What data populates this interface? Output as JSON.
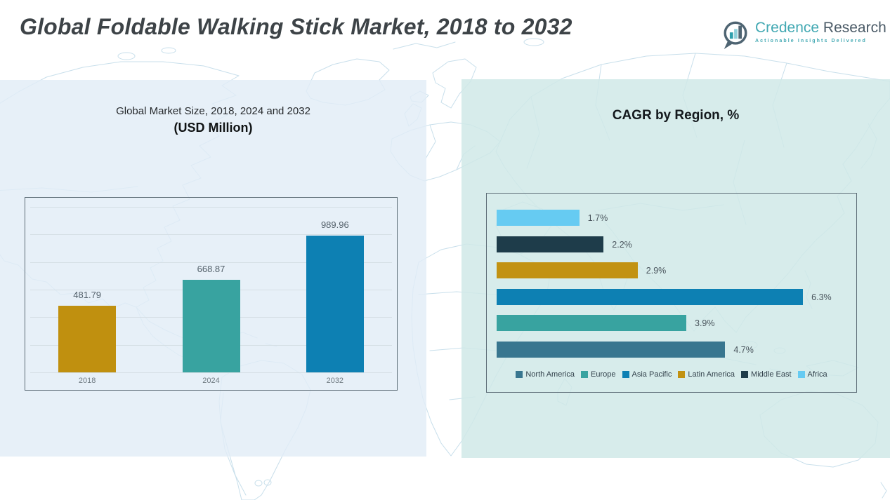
{
  "header": {
    "title": "Global Foldable Walking Stick Market, 2018 to 2032",
    "logo": {
      "name_teal": "Credence",
      "name_dark": " Research",
      "tagline": "Actionable Insights Delivered",
      "icon": "chart-bubble-icon"
    }
  },
  "colors": {
    "brand_teal": "#43a9b3",
    "title_gray": "#3d4347",
    "panel_left": "#e8f0f7",
    "panel_right": "#d9edec",
    "chart_border": "#5d6d77"
  },
  "chart_data": [
    {
      "type": "bar",
      "title": "Global Market Size, 2018, 2024 and 2032 (USD Million)",
      "title_line1": "Global Market Size, 2018, 2024 and 2032",
      "title_line2": "(USD Million)",
      "categories": [
        "2018",
        "2024",
        "2032"
      ],
      "values": [
        481.79,
        668.87,
        989.96
      ],
      "data_labels": [
        "481.79",
        "668.87",
        "989.96"
      ],
      "bar_colors": [
        "#c0900f",
        "#38a3a0",
        "#0d80b3"
      ],
      "ylabel": "USD Million",
      "ylim": [
        0,
        1200
      ],
      "grid": true,
      "grid_divisions": 6,
      "legend_position": "none"
    },
    {
      "type": "bar-horizontal",
      "title": "CAGR by Region, %",
      "categories": [
        "Africa",
        "Middle East",
        "Latin America",
        "Asia Pacific",
        "Europe",
        "North America"
      ],
      "values": [
        1.7,
        2.2,
        2.9,
        6.3,
        3.9,
        4.7
      ],
      "data_labels": [
        "1.7%",
        "2.2%",
        "2.9%",
        "6.3%",
        "3.9%",
        "4.7%"
      ],
      "bar_colors": [
        "#66cbf2",
        "#1e3c4a",
        "#c29212",
        "#0d80b3",
        "#38a3a0",
        "#38768f"
      ],
      "xlim": [
        0,
        6.5
      ],
      "grid": false,
      "legend_position": "bottom",
      "legend": [
        {
          "label": "North America",
          "color": "#38768f"
        },
        {
          "label": "Europe",
          "color": "#38a3a0"
        },
        {
          "label": "Asia Pacific",
          "color": "#0d80b3"
        },
        {
          "label": "Latin America",
          "color": "#c29212"
        },
        {
          "label": "Middle East",
          "color": "#1e3c4a"
        },
        {
          "label": "Africa",
          "color": "#66cbf2"
        }
      ]
    }
  ]
}
